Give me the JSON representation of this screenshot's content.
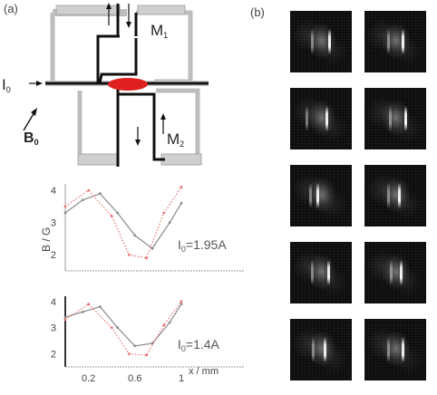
{
  "panel_a_label": "(a)",
  "panel_b_label": "(b)",
  "schematic": {
    "m1_label": "M",
    "m1_sub": "1",
    "m2_label": "M",
    "m2_sub": "2",
    "i0_label": "I",
    "i0_sub": "0",
    "b0_label": "B",
    "b0_sub": "0"
  },
  "plot_top": {
    "annotation_main": "I",
    "annotation_sub": "0",
    "annotation_rest": "=1.95A",
    "y_ticks": [
      "4",
      "3",
      "2"
    ]
  },
  "plot_bottom": {
    "annotation_main": "I",
    "annotation_sub": "0",
    "annotation_rest": "=1.4A",
    "y_ticks": [
      "4",
      "3",
      "2"
    ],
    "x_ticks": [
      "0.2",
      "0.6",
      "1"
    ]
  },
  "shared_ylabel": "B / G",
  "shared_xlabel": "x / mm",
  "chart_data": [
    {
      "type": "line",
      "annotation": "I0=1.95A",
      "ylim": [
        1.5,
        4.2
      ],
      "xlim": [
        0,
        1
      ],
      "series": [
        {
          "x": [
            0,
            0.15,
            0.3,
            0.45,
            0.6,
            0.75,
            0.9,
            1.0
          ],
          "y": [
            3.3,
            3.7,
            3.9,
            3.3,
            2.6,
            2.2,
            3.0,
            3.6
          ]
        },
        {
          "x": [
            0,
            0.2,
            0.4,
            0.55,
            0.7,
            0.85,
            1.0
          ],
          "y": [
            3.5,
            4.0,
            3.2,
            2.0,
            1.9,
            3.3,
            4.1
          ]
        }
      ]
    },
    {
      "type": "line",
      "annotation": "I0=1.4A",
      "ylim": [
        1.5,
        4.2
      ],
      "xlim": [
        0,
        1
      ],
      "series": [
        {
          "x": [
            0,
            0.15,
            0.3,
            0.45,
            0.6,
            0.75,
            0.9,
            1.0
          ],
          "y": [
            3.4,
            3.6,
            3.8,
            3.0,
            2.3,
            2.4,
            3.2,
            3.9
          ]
        },
        {
          "x": [
            0,
            0.2,
            0.4,
            0.55,
            0.7,
            0.85,
            1.0
          ],
          "y": [
            3.3,
            3.9,
            3.0,
            2.0,
            1.95,
            3.1,
            4.0
          ]
        }
      ]
    }
  ],
  "image_grid": {
    "rows": 5,
    "cols": 2,
    "streak_offsets": [
      [
        0.62,
        0.55
      ],
      [
        0.6,
        0.58
      ],
      [
        0.58,
        0.45
      ],
      [
        0.65,
        0.6
      ],
      [
        0.42,
        0.52
      ],
      [
        0.55,
        0.58
      ],
      [
        0.6,
        0.55
      ],
      [
        0.58,
        0.62
      ],
      [
        0.55,
        0.56
      ],
      [
        0.6,
        0.58
      ]
    ]
  }
}
